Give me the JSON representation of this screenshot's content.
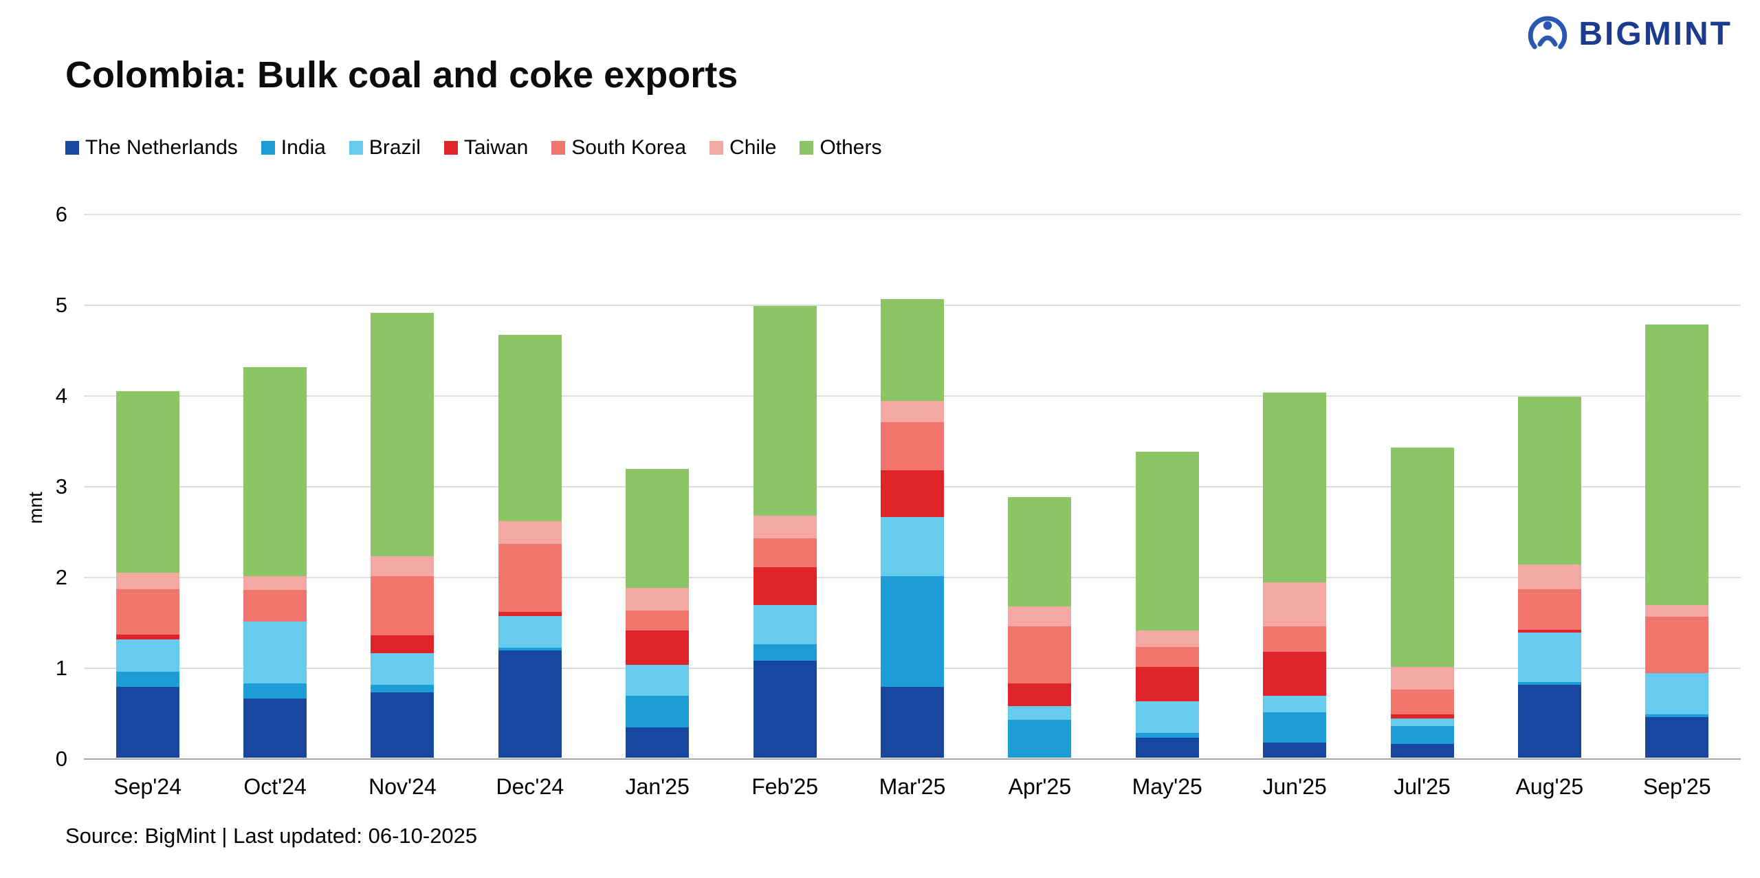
{
  "logo": {
    "text": "BIGMINT",
    "icon_color": "#2a57b0",
    "text_color": "#1b3b8f"
  },
  "title": "Colombia: Bulk coal and coke exports",
  "source": "Source: BigMint | Last updated: 06-10-2025",
  "chart_data": {
    "type": "bar",
    "stacked": true,
    "title": "Colombia: Bulk coal and coke exports",
    "xlabel": "",
    "ylabel": "mnt",
    "ylim": [
      0,
      6
    ],
    "ytick_step": 1,
    "grid": true,
    "legend_position": "top-left",
    "categories": [
      "Sep'24",
      "Oct'24",
      "Nov'24",
      "Dec'24",
      "Jan'25",
      "Feb'25",
      "Mar'25",
      "Apr'25",
      "May'25",
      "Jun'25",
      "Jul'25",
      "Aug'25",
      "Sep'25"
    ],
    "series": [
      {
        "name": "The Netherlands",
        "color": "#17479e",
        "values": [
          0.78,
          0.65,
          0.72,
          1.18,
          0.33,
          1.07,
          0.78,
          0.0,
          0.22,
          0.17,
          0.15,
          0.8,
          0.45
        ]
      },
      {
        "name": "India",
        "color": "#1e9cd6",
        "values": [
          0.17,
          0.17,
          0.08,
          0.03,
          0.35,
          0.18,
          1.22,
          0.42,
          0.05,
          0.33,
          0.2,
          0.03,
          0.03
        ]
      },
      {
        "name": "Brazil",
        "color": "#67cbee",
        "values": [
          0.35,
          0.68,
          0.35,
          0.35,
          0.34,
          0.43,
          0.65,
          0.15,
          0.35,
          0.18,
          0.08,
          0.55,
          0.45
        ]
      },
      {
        "name": "Taiwan",
        "color": "#de2429",
        "values": [
          0.06,
          0.0,
          0.2,
          0.05,
          0.38,
          0.42,
          0.52,
          0.25,
          0.38,
          0.49,
          0.05,
          0.03,
          0.0
        ]
      },
      {
        "name": "South Korea",
        "color": "#f0756c",
        "values": [
          0.5,
          0.35,
          0.65,
          0.75,
          0.22,
          0.32,
          0.53,
          0.63,
          0.22,
          0.28,
          0.27,
          0.45,
          0.62
        ]
      },
      {
        "name": "Chile",
        "color": "#f3a8a3",
        "values": [
          0.18,
          0.15,
          0.22,
          0.25,
          0.25,
          0.25,
          0.23,
          0.22,
          0.18,
          0.48,
          0.25,
          0.27,
          0.13
        ]
      },
      {
        "name": "Others",
        "color": "#8cc566",
        "values": [
          2.0,
          2.3,
          2.68,
          2.05,
          1.31,
          2.31,
          1.12,
          1.2,
          1.97,
          2.09,
          2.42,
          1.85,
          3.09
        ]
      }
    ]
  }
}
